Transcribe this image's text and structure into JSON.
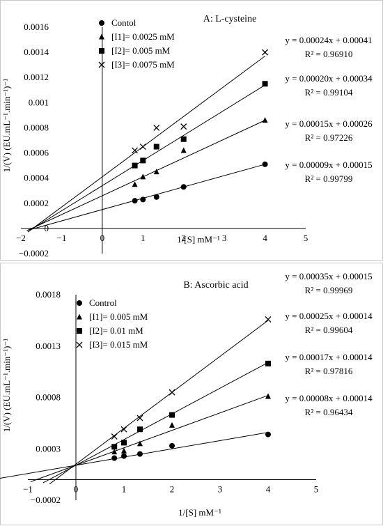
{
  "chart_data": [
    {
      "type": "scatter",
      "title": "A: L-cysteine",
      "xlabel": "1/[S] mM⁻¹",
      "ylabel": "1/(V) (EU.mL⁻¹.min⁻¹)⁻¹",
      "xlim": [
        -2,
        5
      ],
      "ylim": [
        -0.0002,
        0.0016
      ],
      "xticks": [
        "−2",
        "−1",
        "0",
        "1",
        "2",
        "3",
        "4",
        "5"
      ],
      "xtick_values": [
        -2,
        -1,
        0,
        1,
        2,
        3,
        4,
        5
      ],
      "yticks": [
        "−0.0002",
        "0",
        "0.0002",
        "0.0004",
        "0.0006",
        "0.0008",
        "0.001",
        "0.0012",
        "0.0014",
        "0.0016"
      ],
      "ytick_values": [
        -0.0002,
        0,
        0.0002,
        0.0004,
        0.0006,
        0.0008,
        0.001,
        0.0012,
        0.0014,
        0.0016
      ],
      "grid": false,
      "legend_position": "top-left",
      "series": [
        {
          "name": "Contol",
          "marker": "circle",
          "slope": 9e-05,
          "intercept": 0.00015,
          "equation": "y = 0.00009x + 0.00015",
          "r2": "R² = 0.99799",
          "x": [
            0.8,
            1.0,
            1.333,
            2.0,
            4.0
          ],
          "y": [
            0.00022,
            0.00023,
            0.00025,
            0.00033,
            0.00051
          ]
        },
        {
          "name": "[I1]= 0.0025 mM",
          "marker": "triangle",
          "slope": 0.00015,
          "intercept": 0.00026,
          "equation": "y = 0.00015x + 0.00026",
          "r2": "R² = 0.97226",
          "x": [
            0.8,
            1.0,
            1.333,
            2.0,
            4.0
          ],
          "y": [
            0.00035,
            0.00041,
            0.00045,
            0.00062,
            0.00086
          ]
        },
        {
          "name": "[I2]= 0.005 mM",
          "marker": "square",
          "slope": 0.0002,
          "intercept": 0.00034,
          "equation": "y = 0.00020x + 0.00034",
          "r2": "R² = 0.99104",
          "x": [
            0.8,
            1.0,
            1.333,
            2.0,
            4.0
          ],
          "y": [
            0.0005,
            0.00054,
            0.00065,
            0.00071,
            0.00115
          ]
        },
        {
          "name": "[I3]= 0.0075 mM",
          "marker": "cross",
          "slope": 0.00024,
          "intercept": 0.00041,
          "equation": "y = 0.00024x + 0.00041",
          "r2": "R² = 0.96910",
          "x": [
            0.8,
            1.0,
            1.333,
            2.0,
            4.0
          ],
          "y": [
            0.00062,
            0.00065,
            0.0008,
            0.00081,
            0.0014
          ]
        }
      ]
    },
    {
      "type": "scatter",
      "title": "B: Ascorbic acid",
      "xlabel": "1/[S] mM⁻¹",
      "ylabel": "1/(V) (EU.mL⁻¹.min⁻¹)⁻¹",
      "xlim": [
        -1,
        5
      ],
      "ylim": [
        -0.0002,
        0.0018
      ],
      "xticks": [
        "−1",
        "0",
        "1",
        "2",
        "3",
        "4",
        "5"
      ],
      "xtick_values": [
        -1,
        0,
        1,
        2,
        3,
        4,
        5
      ],
      "yticks": [
        "−0.0002",
        "0.0003",
        "0.0008",
        "0.0013",
        "0.0018"
      ],
      "ytick_values": [
        -0.0002,
        0.0003,
        0.0008,
        0.0013,
        0.0018
      ],
      "grid": false,
      "legend_position": "top-left",
      "series": [
        {
          "name": "Control",
          "marker": "circle",
          "slope": 8e-05,
          "intercept": 0.00014,
          "equation": "y = 0.00008x + 0.00014",
          "r2": "R² = 0.96434",
          "x": [
            0.8,
            1.0,
            1.333,
            2.0,
            4.0
          ],
          "y": [
            0.00021,
            0.00023,
            0.00025,
            0.00033,
            0.00044
          ]
        },
        {
          "name": "[I1]= 0.005 mM",
          "marker": "triangle",
          "slope": 0.00017,
          "intercept": 0.00014,
          "equation": "y = 0.00017x + 0.00014",
          "r2": "R² = 0.97816",
          "x": [
            0.8,
            1.0,
            1.333,
            2.0,
            4.0
          ],
          "y": [
            0.00027,
            0.00028,
            0.00035,
            0.00053,
            0.00081
          ]
        },
        {
          "name": "[I2]= 0.01 mM",
          "marker": "square",
          "slope": 0.00025,
          "intercept": 0.00014,
          "equation": "y = 0.00025x + 0.00014",
          "r2": "R² = 0.99604",
          "x": [
            0.8,
            1.0,
            1.333,
            2.0,
            4.0
          ],
          "y": [
            0.00032,
            0.00036,
            0.00049,
            0.00063,
            0.00113
          ]
        },
        {
          "name": "[I3]= 0.015 mM",
          "marker": "cross",
          "slope": 0.00035,
          "intercept": 0.00015,
          "equation": "y = 0.00035x + 0.00015",
          "r2": "R² = 0.99969",
          "x": [
            0.8,
            1.0,
            1.333,
            2.0,
            4.0
          ],
          "y": [
            0.00042,
            0.00049,
            0.0006,
            0.00085,
            0.00156
          ]
        }
      ]
    }
  ]
}
